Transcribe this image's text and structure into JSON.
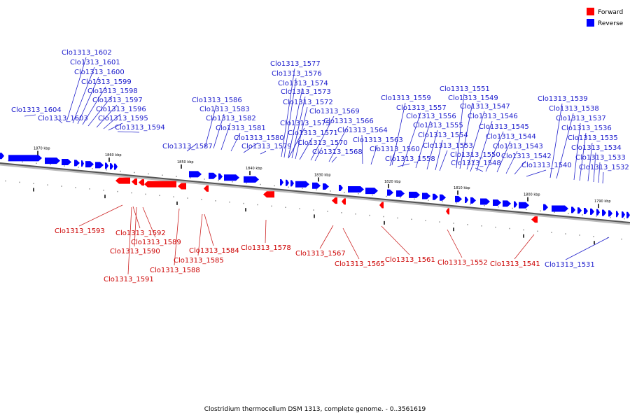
{
  "legend": [
    {
      "label": "Forward",
      "color": "#ff0000"
    },
    {
      "label": "Reverse",
      "color": "#0000ff"
    }
  ],
  "caption": "Clostridium thermocellum DSM 1313, complete genome. - 0..3561619",
  "scale_labels": [
    "1870 kbp",
    "1860 kbp",
    "1850 kbp",
    "1840 kbp",
    "1830 kbp",
    "1820 kbp",
    "1810 kbp",
    "1800 kbp",
    "1790 kbp"
  ],
  "reverse_genes": [
    "Clo1313_1604",
    "Clo1313_1603",
    "Clo1313_1602",
    "Clo1313_1601",
    "Clo1313_1600",
    "Clo1313_1599",
    "Clo1313_1598",
    "Clo1313_1597",
    "Clo1313_1596",
    "Clo1313_1595",
    "Clo1313_1594",
    "Clo1313_1587",
    "Clo1313_1586",
    "Clo1313_1583",
    "Clo1313_1582",
    "Clo1313_1581",
    "Clo1313_1580",
    "Clo1313_1579",
    "Clo1313_1577",
    "Clo1313_1576",
    "Clo1313_1574",
    "Clo1313_1573",
    "Clo1313_1572",
    "Clo1313_1575",
    "Clo1313_1571",
    "Clo1313_1570",
    "Clo1313_1569",
    "Clo1313_1566",
    "Clo1313_1564",
    "Clo1313_1568",
    "Clo1313_1563",
    "Clo1313_1560",
    "Clo1313_1558",
    "Clo1313_1559",
    "Clo1313_1557",
    "Clo1313_1556",
    "Clo1313_1555",
    "Clo1313_1554",
    "Clo1313_1553",
    "Clo1313_1551",
    "Clo1313_1549",
    "Clo1313_1547",
    "Clo1313_1546",
    "Clo1313_1545",
    "Clo1313_1544",
    "Clo1313_1543",
    "Clo1313_1542",
    "Clo1313_1550",
    "Clo1313_1548",
    "Clo1313_1540",
    "Clo1313_1539",
    "Clo1313_1538",
    "Clo1313_1537",
    "Clo1313_1536",
    "Clo1313_1535",
    "Clo1313_1534",
    "Clo1313_1533",
    "Clo1313_1532",
    "Clo1313_1531"
  ],
  "forward_genes": [
    "Clo1313_1593",
    "Clo1313_1592",
    "Clo1313_1589",
    "Clo1313_1590",
    "Clo1313_1591",
    "Clo1313_1588",
    "Clo1313_1584",
    "Clo1313_1585",
    "Clo1313_1578",
    "Clo1313_1567",
    "Clo1313_1565",
    "Clo1313_1561",
    "Clo1313_1552",
    "Clo1313_1541"
  ]
}
